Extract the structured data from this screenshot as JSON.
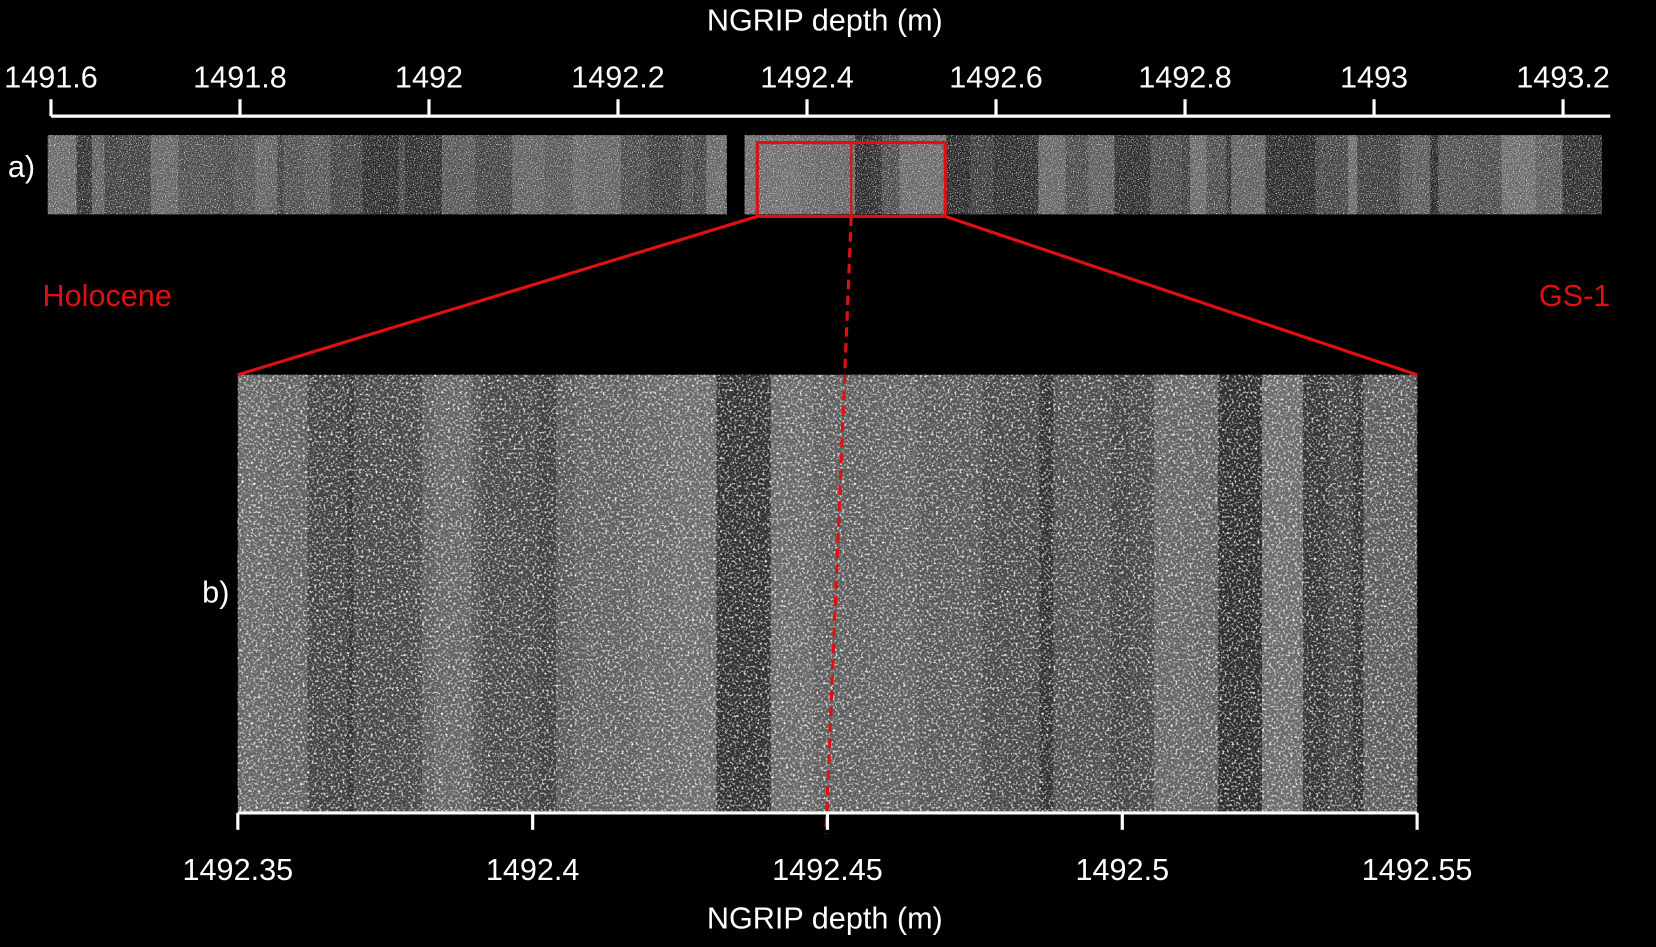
{
  "chart_data": [
    {
      "type": "image-strip",
      "panel_label": "a)",
      "xlabel": "NGRIP depth (m)",
      "xlim": [
        1491.6,
        1493.25
      ],
      "xticks": [
        1491.6,
        1491.8,
        1492,
        1492.2,
        1492.4,
        1492.6,
        1492.8,
        1493,
        1493.2
      ],
      "left_label": "Holocene",
      "right_label": "GS-1"
    },
    {
      "type": "image-strip",
      "panel_label": "b)",
      "xlabel": "NGRIP depth (m)",
      "xlim": [
        1492.35,
        1492.55
      ],
      "xticks": [
        1492.35,
        1492.4,
        1492.45,
        1492.5,
        1492.55
      ]
    }
  ]
}
